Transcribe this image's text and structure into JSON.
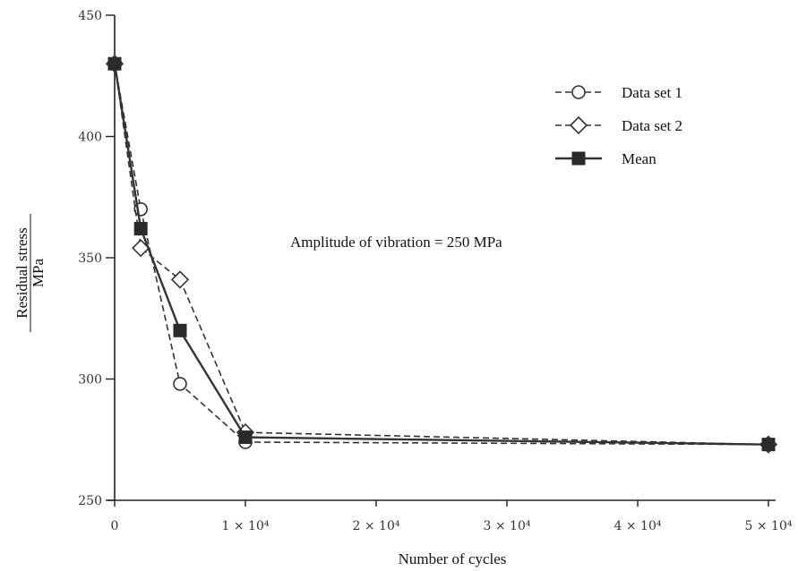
{
  "chart_data": {
    "type": "line",
    "title": "",
    "xlabel": "Number of cycles",
    "ylabel_top": "Residual stress",
    "ylabel_bottom": "MPa",
    "xlim": [
      0,
      50000
    ],
    "ylim": [
      250,
      450
    ],
    "x_ticks": [
      {
        "value": 0,
        "label": "0"
      },
      {
        "value": 10000,
        "label": "1 × 10⁴"
      },
      {
        "value": 20000,
        "label": "2 × 10⁴"
      },
      {
        "value": 30000,
        "label": "3 × 10⁴"
      },
      {
        "value": 40000,
        "label": "4 × 10⁴"
      },
      {
        "value": 50000,
        "label": "5 × 10⁴"
      }
    ],
    "y_ticks": [
      {
        "value": 250,
        "label": "250"
      },
      {
        "value": 300,
        "label": "300"
      },
      {
        "value": 350,
        "label": "350"
      },
      {
        "value": 400,
        "label": "400"
      },
      {
        "value": 450,
        "label": "450"
      }
    ],
    "annotation": "Amplitude of vibration = 250 MPa",
    "grid": false,
    "legend_position": "top-right",
    "series": [
      {
        "name": "Data set 1",
        "marker": "circle",
        "dash": "dashed",
        "x": [
          0,
          2000,
          5000,
          10000,
          50000
        ],
        "y": [
          430,
          370,
          298,
          274,
          273
        ]
      },
      {
        "name": "Data set 2",
        "marker": "diamond",
        "dash": "dashed",
        "x": [
          0,
          2000,
          5000,
          10000,
          50000
        ],
        "y": [
          430,
          354,
          341,
          278,
          273
        ]
      },
      {
        "name": "Mean",
        "marker": "square",
        "dash": "solid",
        "x": [
          0,
          2000,
          5000,
          10000,
          50000
        ],
        "y": [
          430,
          362,
          320,
          276,
          273
        ]
      }
    ]
  }
}
